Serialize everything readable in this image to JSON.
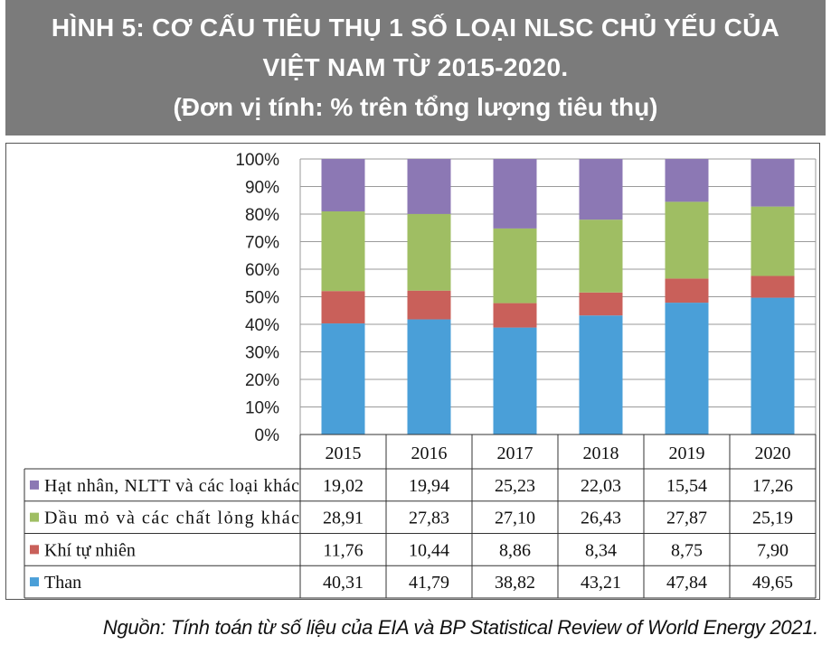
{
  "header": {
    "line1": "HÌNH 5: CƠ CẤU TIÊU THỤ 1 SỐ LOẠI NLSC CHỦ YẾU CỦA",
    "line2": "VIỆT NAM TỪ 2015-2020.",
    "line3": "(Đơn vị tính: % trên tổng lượng tiêu thụ)"
  },
  "source": "Nguồn: Tính toán từ số liệu của EIA và BP Statistical Review of World Energy 2021.",
  "chart_data": {
    "type": "bar",
    "stacked": true,
    "categories": [
      "2015",
      "2016",
      "2017",
      "2018",
      "2019",
      "2020"
    ],
    "yticks": [
      "0%",
      "10%",
      "20%",
      "30%",
      "40%",
      "50%",
      "60%",
      "70%",
      "80%",
      "90%",
      "100%"
    ],
    "ylim": [
      0,
      100
    ],
    "series": [
      {
        "name": "Than",
        "color": "#4a9fd8",
        "values": [
          40.31,
          41.79,
          38.82,
          43.21,
          47.84,
          49.65
        ],
        "labels": [
          "40,31",
          "41,79",
          "38,82",
          "43,21",
          "47,84",
          "49,65"
        ]
      },
      {
        "name": "Khí tự nhiên",
        "color": "#c9605a",
        "values": [
          11.76,
          10.44,
          8.86,
          8.34,
          8.75,
          7.9
        ],
        "labels": [
          "11,76",
          "10,44",
          "8,86",
          "8,34",
          "8,75",
          "7,90"
        ]
      },
      {
        "name": "Dầu mỏ và các chất lỏng khác",
        "color": "#9fbe63",
        "values": [
          28.91,
          27.83,
          27.1,
          26.43,
          27.87,
          25.19
        ],
        "labels": [
          "28,91",
          "27,83",
          "27,10",
          "26,43",
          "27,87",
          "25,19"
        ]
      },
      {
        "name": "Hạt nhân, NLTT  và các loại khác",
        "color": "#8c78b4",
        "values": [
          19.02,
          19.94,
          25.23,
          22.03,
          15.54,
          17.26
        ],
        "labels": [
          "19,02",
          "19,94",
          "25,23",
          "22,03",
          "15,54",
          "17,26"
        ]
      }
    ],
    "table_row_order": [
      3,
      2,
      1,
      0
    ],
    "grid": true,
    "legend": "table-left"
  }
}
